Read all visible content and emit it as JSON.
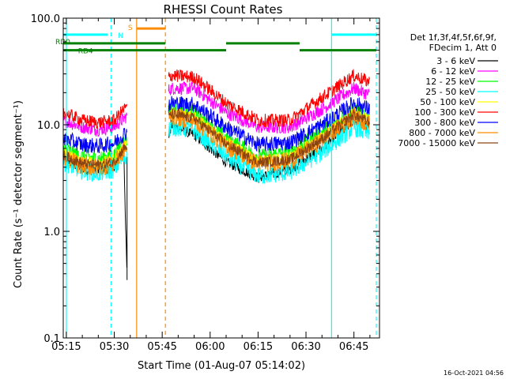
{
  "chart_data": {
    "type": "line",
    "title": "RHESSI Count Rates",
    "xlabel": "Start Time (01-Aug-07 05:14:02)",
    "ylabel": "Count Rate (s⁻¹ detector segment⁻¹)",
    "y_scale": "log",
    "ylim": [
      0.1,
      100.0
    ],
    "xlim": [
      "05:14:02",
      "06:53:00"
    ],
    "y_ticks": [
      "0.1",
      "1.0",
      "10.0",
      "100.0"
    ],
    "x_ticks": [
      "05:15",
      "05:30",
      "05:45",
      "06:00",
      "06:15",
      "06:30",
      "06:45"
    ],
    "legend_position": "right",
    "legend_header": [
      "Det 1f,3f,4f,5f,6f,9f,",
      "FDecim 1, Att 0"
    ],
    "series": [
      {
        "name": "3 - 6 keV",
        "color": "#000000",
        "x": [
          "05:14",
          "05:20",
          "05:25",
          "05:30",
          "05:33",
          "05:34",
          "05:48",
          "05:55",
          "06:05",
          "06:15",
          "06:25",
          "06:35",
          "06:45",
          "06:50"
        ],
        "y": [
          5.0,
          3.8,
          3.7,
          4.0,
          5.5,
          0.35,
          10.0,
          8.0,
          4.5,
          3.2,
          3.8,
          6.0,
          11.0,
          9.5
        ]
      },
      {
        "name": "6 - 12 keV",
        "color": "#ff00ff",
        "x": [
          "05:14",
          "05:20",
          "05:25",
          "05:30",
          "05:33",
          "05:48",
          "05:55",
          "06:05",
          "06:15",
          "06:25",
          "06:35",
          "06:45",
          "06:50"
        ],
        "y": [
          11.0,
          9.5,
          9.0,
          9.5,
          11.5,
          22.0,
          22.0,
          13.0,
          9.5,
          9.5,
          14.0,
          22.0,
          19.0
        ]
      },
      {
        "name": "12 - 25 keV",
        "color": "#00ff00",
        "x": [
          "05:14",
          "05:20",
          "05:25",
          "05:30",
          "05:33",
          "05:48",
          "05:55",
          "06:05",
          "06:15",
          "06:25",
          "06:35",
          "06:45",
          "06:50"
        ],
        "y": [
          6.0,
          5.0,
          4.8,
          5.2,
          7.0,
          14.0,
          13.0,
          7.5,
          5.0,
          5.5,
          8.5,
          14.0,
          12.0
        ]
      },
      {
        "name": "25 - 50 keV",
        "color": "#00ffff",
        "x": [
          "05:14",
          "05:20",
          "05:25",
          "05:30",
          "05:33",
          "05:48",
          "05:55",
          "06:05",
          "06:15",
          "06:25",
          "06:35",
          "06:45",
          "06:50"
        ],
        "y": [
          4.5,
          3.7,
          3.5,
          3.8,
          5.0,
          9.5,
          9.0,
          5.0,
          3.3,
          3.6,
          5.5,
          9.5,
          8.0
        ]
      },
      {
        "name": "50 - 100 keV",
        "color": "#ffff00",
        "x": [
          "05:14",
          "05:20",
          "05:25",
          "05:30",
          "05:33",
          "05:48",
          "05:55",
          "06:05",
          "06:15",
          "06:25",
          "06:35",
          "06:45",
          "06:50"
        ],
        "y": [
          5.5,
          4.6,
          4.4,
          4.8,
          6.4,
          13.0,
          12.0,
          7.0,
          4.6,
          5.0,
          7.8,
          13.0,
          11.0
        ]
      },
      {
        "name": "100 - 300 keV",
        "color": "#ff0000",
        "x": [
          "05:14",
          "05:20",
          "05:25",
          "05:30",
          "05:33",
          "05:48",
          "05:55",
          "06:05",
          "06:15",
          "06:25",
          "06:35",
          "06:45",
          "06:50"
        ],
        "y": [
          13.0,
          11.0,
          10.5,
          11.0,
          14.0,
          29.0,
          28.0,
          16.0,
          11.0,
          11.0,
          18.0,
          29.0,
          25.0
        ]
      },
      {
        "name": "300 - 800 keV",
        "color": "#0000ff",
        "x": [
          "05:14",
          "05:20",
          "05:25",
          "05:30",
          "05:33",
          "05:48",
          "05:55",
          "06:05",
          "06:15",
          "06:25",
          "06:35",
          "06:45",
          "06:50"
        ],
        "y": [
          7.5,
          6.5,
          6.3,
          6.7,
          8.2,
          16.0,
          15.5,
          9.5,
          6.5,
          6.8,
          10.0,
          16.0,
          14.0
        ]
      },
      {
        "name": "800 - 7000 keV",
        "color": "#ff8c00",
        "x": [
          "05:14",
          "05:20",
          "05:25",
          "05:30",
          "05:33",
          "05:48",
          "05:55",
          "06:05",
          "06:15",
          "06:25",
          "06:35",
          "06:45",
          "06:50"
        ],
        "y": [
          5.0,
          4.1,
          4.0,
          4.3,
          5.8,
          12.0,
          11.0,
          6.4,
          4.3,
          4.6,
          7.2,
          12.0,
          10.0
        ]
      },
      {
        "name": "7000 - 15000 keV",
        "color": "#8b4513",
        "x": [
          "05:14",
          "05:20",
          "05:25",
          "05:30",
          "05:33",
          "05:48",
          "05:55",
          "06:05",
          "06:15",
          "06:25",
          "06:35",
          "06:45",
          "06:50"
        ],
        "y": [
          5.2,
          4.3,
          4.2,
          4.5,
          6.0,
          12.5,
          11.5,
          6.6,
          4.4,
          4.7,
          7.4,
          12.5,
          10.5
        ]
      }
    ],
    "annotations": [
      {
        "text": "N",
        "color": "#00ffff"
      },
      {
        "text": "S",
        "color": "#ff8c00"
      },
      {
        "text": "RD0",
        "color": "#008000"
      },
      {
        "text": "RD4",
        "color": "#008000"
      }
    ],
    "flag_lines": [
      {
        "name": "N",
        "color": "#00ffff",
        "x": [
          "05:14",
          "05:28"
        ],
        "y": 70
      },
      {
        "name": "S",
        "color": "#ff8c00",
        "x": [
          "05:37",
          "05:46"
        ],
        "y": 80
      },
      {
        "name": "RD0",
        "color": "#008000",
        "x": [
          "05:14",
          "05:46"
        ],
        "y": 58
      },
      {
        "name": "RD0",
        "color": "#008000",
        "x": [
          "06:05",
          "06:28"
        ],
        "y": 58
      },
      {
        "name": "RD4",
        "color": "#008000",
        "x": [
          "05:14",
          "05:46"
        ],
        "y": 50
      },
      {
        "name": "RD4",
        "color": "#008000",
        "x": [
          "05:46",
          "06:05"
        ],
        "y": 50
      },
      {
        "name": "RD4",
        "color": "#008000",
        "x": [
          "06:28",
          "06:52"
        ],
        "y": 50
      },
      {
        "name": "N",
        "color": "#00ffff",
        "x": [
          "06:38",
          "06:52"
        ],
        "y": 70
      }
    ],
    "vertical_markers": [
      {
        "x": "05:15",
        "color": "#00ffff",
        "style": "solid"
      },
      {
        "x": "05:29",
        "color": "#00ffff",
        "style": "dashed"
      },
      {
        "x": "05:37",
        "color": "#ff8c00",
        "style": "solid"
      },
      {
        "x": "05:46",
        "color": "#ff8c00",
        "style": "dashed"
      },
      {
        "x": "06:38",
        "color": "#00ffff",
        "style": "solid"
      },
      {
        "x": "06:52",
        "color": "#00ffff",
        "style": "dashed"
      }
    ],
    "gap": [
      "05:34",
      "05:47"
    ]
  },
  "footer": {
    "timestamp": "16-Oct-2021 04:56"
  }
}
